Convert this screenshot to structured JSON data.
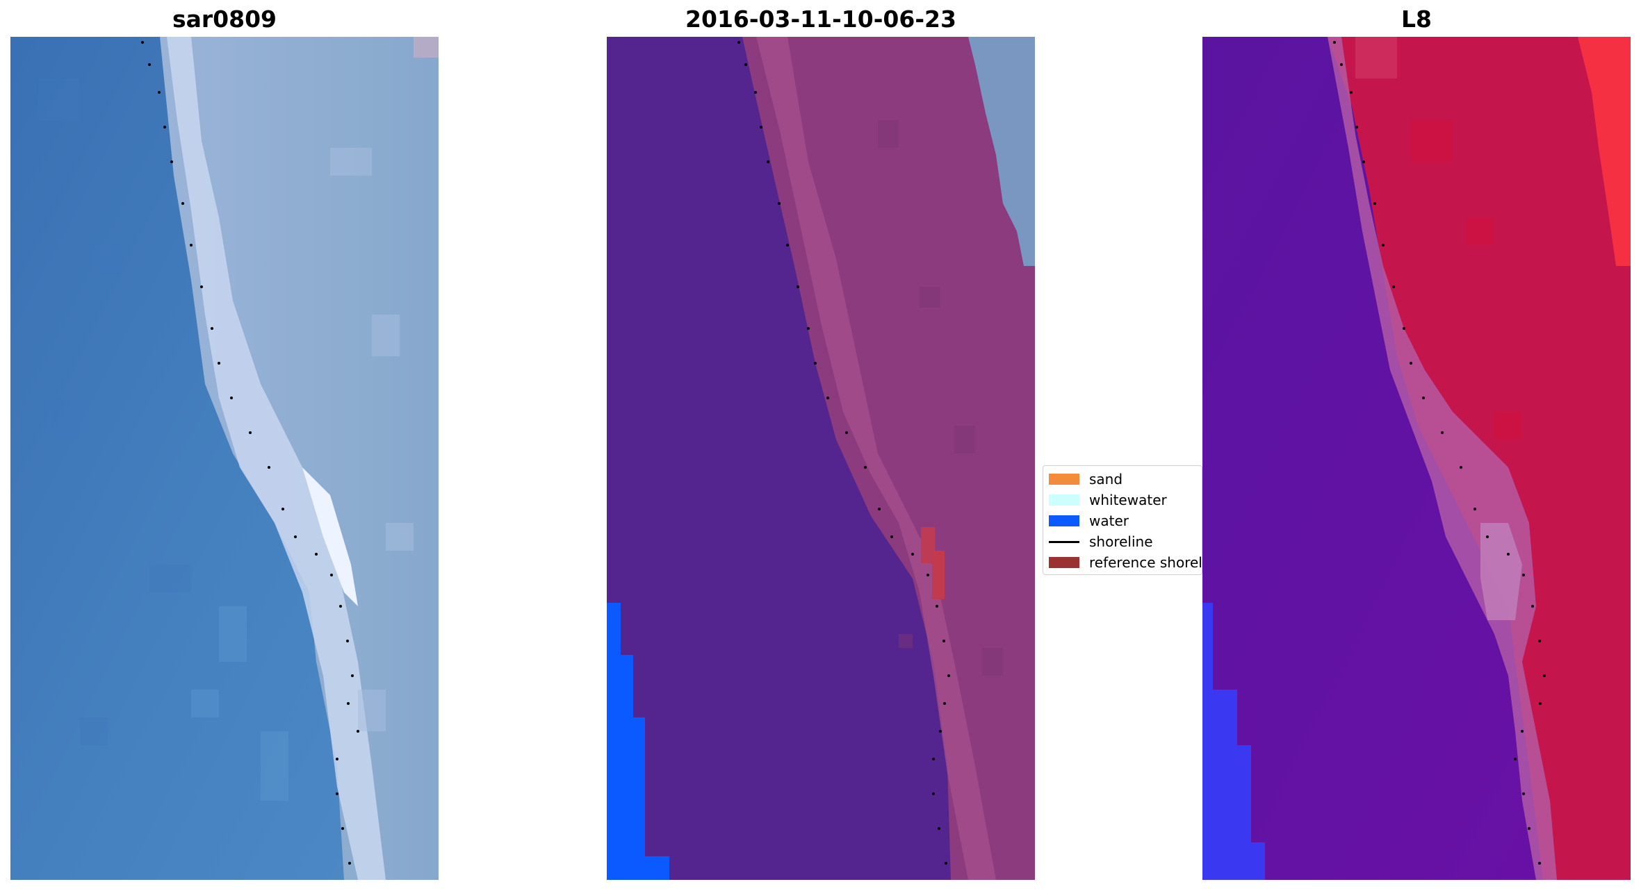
{
  "panels": [
    {
      "title": "sar0809"
    },
    {
      "title": "2016-03-11-10-06-23"
    },
    {
      "title": "L8"
    }
  ],
  "legend": {
    "items": [
      {
        "label": "sand",
        "kind": "patch",
        "color": "#f28c3c"
      },
      {
        "label": "whitewater",
        "kind": "patch",
        "color": "#ccffff"
      },
      {
        "label": "water",
        "kind": "patch",
        "color": "#0a5aff"
      },
      {
        "label": "shoreline",
        "kind": "line",
        "color": "#000000"
      },
      {
        "label": "reference shoreline",
        "kind": "patch",
        "color": "#9b3232"
      }
    ]
  }
}
